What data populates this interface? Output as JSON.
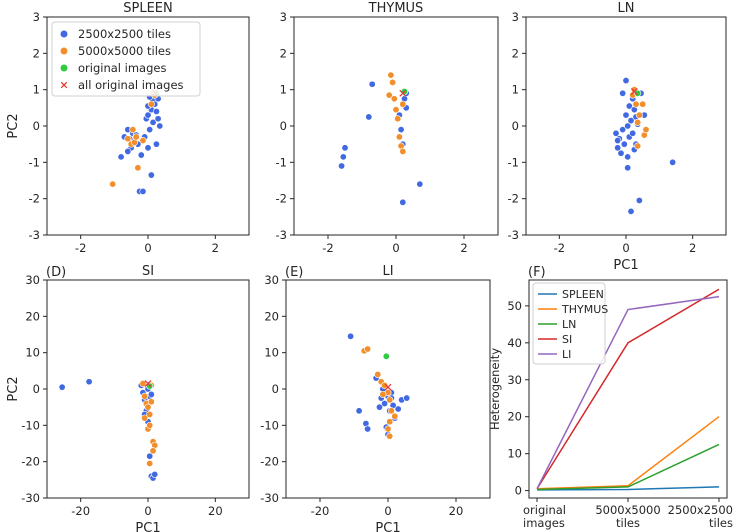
{
  "chart_data": [
    {
      "id": "spleen",
      "type": "scatter",
      "title": "SPLEEN",
      "panel_label": "",
      "xlabel": "",
      "ylabel": "PC2",
      "xlim": [
        -3,
        3
      ],
      "ylim": [
        -3,
        3
      ],
      "xticks": [
        -2,
        0,
        2
      ],
      "yticks": [
        -3,
        -2,
        -1,
        0,
        1,
        2,
        3
      ],
      "legend": {
        "placement": "top-left",
        "entries": [
          {
            "label": "2500x2500 tiles",
            "marker": "circle",
            "color": "#4169e1"
          },
          {
            "label": "5000x5000 tiles",
            "marker": "circle",
            "color": "#f28e2b"
          },
          {
            "label": "original images",
            "marker": "circle",
            "color": "#2ecc40"
          },
          {
            "label": "all original images",
            "marker": "x",
            "color": "#e53935"
          }
        ]
      },
      "series": [
        {
          "name": "2500x2500 tiles",
          "color": "#4169e1",
          "points": [
            [
              -0.7,
              -0.3
            ],
            [
              -0.6,
              -0.1
            ],
            [
              -0.55,
              -0.35
            ],
            [
              -0.5,
              -0.6
            ],
            [
              -0.45,
              -0.2
            ],
            [
              -0.4,
              -0.4
            ],
            [
              -0.35,
              -0.25
            ],
            [
              -0.3,
              -0.5
            ],
            [
              -0.25,
              -1.8
            ],
            [
              -0.15,
              -1.8
            ],
            [
              -0.1,
              -0.3
            ],
            [
              -0.05,
              0.2
            ],
            [
              0.0,
              -0.6
            ],
            [
              0.05,
              -0.1
            ],
            [
              0.0,
              0.3
            ],
            [
              0.1,
              0.45
            ],
            [
              0.15,
              0.7
            ],
            [
              0.05,
              0.8
            ],
            [
              0.2,
              0.6
            ],
            [
              0.25,
              0.4
            ],
            [
              0.3,
              0.2
            ],
            [
              0.35,
              0.0
            ],
            [
              0.15,
              0.1
            ],
            [
              0.1,
              -1.35
            ],
            [
              0.25,
              -0.5
            ],
            [
              -0.2,
              -0.8
            ],
            [
              -0.6,
              -0.7
            ],
            [
              -0.8,
              -0.85
            ],
            [
              0.3,
              0.75
            ],
            [
              0.0,
              0.55
            ]
          ]
        },
        {
          "name": "5000x5000 tiles",
          "color": "#f28e2b",
          "points": [
            [
              -1.05,
              -1.6
            ],
            [
              -0.6,
              -0.35
            ],
            [
              -0.5,
              -0.5
            ],
            [
              -0.45,
              -0.1
            ],
            [
              -0.4,
              -0.45
            ],
            [
              -0.35,
              -0.3
            ],
            [
              -0.3,
              -1.15
            ],
            [
              0.15,
              0.9
            ],
            [
              0.2,
              0.85
            ],
            [
              0.1,
              0.6
            ],
            [
              -0.15,
              -0.4
            ]
          ]
        },
        {
          "name": "original images",
          "color": "#2ecc40",
          "points": [
            [
              0.25,
              0.9
            ]
          ]
        },
        {
          "name": "all original images",
          "color": "#e53935",
          "points": [
            [
              0.2,
              0.92
            ]
          ]
        }
      ]
    },
    {
      "id": "thymus",
      "type": "scatter",
      "title": "THYMUS",
      "panel_label": "",
      "xlabel": "",
      "ylabel": "",
      "xlim": [
        -3,
        3
      ],
      "ylim": [
        -3,
        3
      ],
      "xticks": [
        -2,
        0,
        2
      ],
      "yticks": [
        -3,
        -2,
        -1,
        0,
        1,
        2,
        3
      ],
      "series": [
        {
          "name": "2500x2500 tiles",
          "color": "#4169e1",
          "points": [
            [
              -1.5,
              -0.6
            ],
            [
              -1.55,
              -0.85
            ],
            [
              -1.6,
              -1.1
            ],
            [
              -0.7,
              1.15
            ],
            [
              -0.8,
              0.25
            ],
            [
              0.1,
              0.3
            ],
            [
              0.15,
              -0.1
            ],
            [
              0.2,
              -0.5
            ],
            [
              0.25,
              0.75
            ],
            [
              0.3,
              0.5
            ],
            [
              0.7,
              -1.6
            ],
            [
              0.2,
              -2.1
            ],
            [
              0.3,
              0.9
            ]
          ]
        },
        {
          "name": "5000x5000 tiles",
          "color": "#f28e2b",
          "points": [
            [
              -0.15,
              1.4
            ],
            [
              -0.1,
              1.2
            ],
            [
              -0.2,
              0.85
            ],
            [
              0.0,
              0.45
            ],
            [
              0.05,
              0.2
            ],
            [
              0.1,
              -0.3
            ],
            [
              0.15,
              -0.55
            ],
            [
              0.2,
              -0.7
            ],
            [
              0.25,
              0.95
            ],
            [
              -0.05,
              0.75
            ],
            [
              0.2,
              0.6
            ]
          ]
        },
        {
          "name": "original images",
          "color": "#2ecc40",
          "points": [
            [
              0.25,
              0.95
            ]
          ]
        },
        {
          "name": "all original images",
          "color": "#e53935",
          "points": [
            [
              0.2,
              0.9
            ]
          ]
        }
      ]
    },
    {
      "id": "ln",
      "type": "scatter",
      "title": "LN",
      "panel_label": "",
      "xlabel": "PC1",
      "ylabel": "",
      "xlim": [
        -3,
        3
      ],
      "ylim": [
        -3,
        3
      ],
      "xticks": [
        -2,
        0,
        2
      ],
      "yticks": [
        -3,
        -2,
        -1,
        0,
        1,
        2,
        3
      ],
      "series": [
        {
          "name": "2500x2500 tiles",
          "color": "#4169e1",
          "points": [
            [
              -0.3,
              -0.2
            ],
            [
              -0.25,
              -0.6
            ],
            [
              -0.2,
              -0.35
            ],
            [
              -0.15,
              -0.75
            ],
            [
              -0.1,
              -0.1
            ],
            [
              -0.05,
              -0.5
            ],
            [
              0.0,
              1.25
            ],
            [
              0.0,
              0.3
            ],
            [
              0.05,
              -0.85
            ],
            [
              0.05,
              -1.15
            ],
            [
              0.1,
              0.55
            ],
            [
              0.1,
              -0.3
            ],
            [
              0.15,
              0.15
            ],
            [
              0.15,
              -2.35
            ],
            [
              0.2,
              0.75
            ],
            [
              0.2,
              -0.2
            ],
            [
              0.25,
              0.45
            ],
            [
              0.3,
              -0.5
            ],
            [
              0.35,
              0.05
            ],
            [
              0.4,
              -2.05
            ],
            [
              0.45,
              0.9
            ],
            [
              0.55,
              0.3
            ],
            [
              1.4,
              -1.0
            ],
            [
              -0.1,
              0.9
            ],
            [
              0.05,
              0.0
            ],
            [
              0.25,
              -0.65
            ],
            [
              -0.25,
              -0.4
            ],
            [
              0.3,
              0.25
            ]
          ]
        },
        {
          "name": "5000x5000 tiles",
          "color": "#f28e2b",
          "points": [
            [
              0.2,
              0.85
            ],
            [
              0.3,
              0.6
            ],
            [
              0.35,
              0.1
            ],
            [
              0.4,
              0.3
            ],
            [
              0.5,
              0.6
            ],
            [
              0.55,
              -0.25
            ],
            [
              0.6,
              -0.1
            ],
            [
              0.35,
              -0.55
            ],
            [
              0.25,
              1.0
            ]
          ]
        },
        {
          "name": "original images",
          "color": "#2ecc40",
          "points": [
            [
              0.35,
              0.9
            ]
          ]
        },
        {
          "name": "all original images",
          "color": "#e53935",
          "points": [
            [
              0.25,
              0.95
            ]
          ]
        }
      ]
    },
    {
      "id": "si",
      "type": "scatter",
      "title": "SI",
      "panel_label": "(D)",
      "xlabel": "PC1",
      "ylabel": "PC2",
      "xlim": [
        -30,
        30
      ],
      "ylim": [
        -30,
        30
      ],
      "xticks": [
        -20,
        0,
        20
      ],
      "yticks": [
        -30,
        -20,
        -10,
        0,
        10,
        20,
        30
      ],
      "series": [
        {
          "name": "2500x2500 tiles",
          "color": "#4169e1",
          "points": [
            [
              -25.5,
              0.5
            ],
            [
              -17.5,
              2.0
            ],
            [
              -2.0,
              1.0
            ],
            [
              -1.5,
              -1.0
            ],
            [
              -1.0,
              -3.0
            ],
            [
              -0.5,
              -6.0
            ],
            [
              0.0,
              -9.0
            ],
            [
              0.5,
              -2.0
            ],
            [
              1.0,
              -24.0
            ],
            [
              1.5,
              -24.5
            ],
            [
              2.0,
              -23.5
            ],
            [
              0.5,
              -18.5
            ],
            [
              -1.0,
              -7.0
            ],
            [
              1.0,
              -1.5
            ],
            [
              0.0,
              0.0
            ]
          ]
        },
        {
          "name": "5000x5000 tiles",
          "color": "#f28e2b",
          "points": [
            [
              -1.5,
              1.5
            ],
            [
              -1.0,
              -2.0
            ],
            [
              -0.5,
              -4.0
            ],
            [
              0.0,
              -5.0
            ],
            [
              0.5,
              -7.0
            ],
            [
              1.0,
              -3.5
            ],
            [
              -1.0,
              -8.0
            ],
            [
              0.0,
              -11.0
            ],
            [
              0.5,
              -10.0
            ],
            [
              1.5,
              -14.5
            ],
            [
              2.0,
              -15.5
            ],
            [
              1.5,
              -17.0
            ],
            [
              0.5,
              -20.5
            ],
            [
              1.0,
              1.0
            ]
          ]
        },
        {
          "name": "original images",
          "color": "#2ecc40",
          "points": [
            [
              0.5,
              0.8
            ]
          ]
        },
        {
          "name": "all original images",
          "color": "#e53935",
          "points": [
            [
              0.0,
              1.5
            ]
          ]
        }
      ]
    },
    {
      "id": "li",
      "type": "scatter",
      "title": "LI",
      "panel_label": "(E)",
      "xlabel": "PC1",
      "ylabel": "",
      "xlim": [
        -30,
        30
      ],
      "ylim": [
        -30,
        30
      ],
      "xticks": [
        -20,
        0,
        20
      ],
      "yticks": [
        -30,
        -20,
        -10,
        0,
        10,
        20,
        30
      ],
      "series": [
        {
          "name": "2500x2500 tiles",
          "color": "#4169e1",
          "points": [
            [
              -11.0,
              14.5
            ],
            [
              -8.5,
              -6.0
            ],
            [
              -6.5,
              -9.5
            ],
            [
              -6.0,
              -11.0
            ],
            [
              -3.5,
              3.0
            ],
            [
              -2.0,
              -2.5
            ],
            [
              -1.5,
              0.0
            ],
            [
              -1.0,
              -4.0
            ],
            [
              0.0,
              -2.0
            ],
            [
              0.5,
              -6.0
            ],
            [
              1.0,
              -1.0
            ],
            [
              1.5,
              -4.5
            ],
            [
              2.0,
              -8.0
            ],
            [
              3.0,
              -5.5
            ],
            [
              4.0,
              -3.0
            ],
            [
              5.5,
              -2.5
            ],
            [
              0.0,
              -12.5
            ],
            [
              -0.5,
              -10.5
            ],
            [
              1.0,
              -2.5
            ],
            [
              -2.5,
              -5.0
            ]
          ]
        },
        {
          "name": "5000x5000 tiles",
          "color": "#f28e2b",
          "points": [
            [
              -7.0,
              10.5
            ],
            [
              -6.0,
              11.0
            ],
            [
              -3.0,
              4.0
            ],
            [
              -2.0,
              2.0
            ],
            [
              -1.0,
              1.0
            ],
            [
              0.0,
              -1.0
            ],
            [
              0.5,
              -3.0
            ],
            [
              1.0,
              -6.0
            ],
            [
              0.5,
              -9.0
            ],
            [
              0.0,
              -11.0
            ],
            [
              0.5,
              -13.0
            ],
            [
              -1.5,
              -1.5
            ],
            [
              2.0,
              -7.5
            ]
          ]
        },
        {
          "name": "original images",
          "color": "#2ecc40",
          "points": [
            [
              -0.5,
              9.0
            ]
          ]
        },
        {
          "name": "all original images",
          "color": "#e53935",
          "points": [
            [
              0.0,
              0.5
            ]
          ]
        }
      ]
    },
    {
      "id": "heterogeneity",
      "type": "line",
      "title": "",
      "panel_label": "(F)",
      "xlabel": "",
      "ylabel": "Heterogeneity",
      "categories": [
        "original images",
        "5000x5000 tiles",
        "2500x2500 tiles"
      ],
      "category_lines": [
        [
          "original",
          "images"
        ],
        [
          "5000x5000",
          "tiles"
        ],
        [
          "2500x2500",
          "tiles"
        ]
      ],
      "ylim": [
        -2,
        57
      ],
      "yticks": [
        0,
        10,
        20,
        30,
        40,
        50
      ],
      "legend": {
        "placement": "top-left",
        "entries": [
          {
            "label": "SPLEEN",
            "color": "#1f77b4"
          },
          {
            "label": "THYMUS",
            "color": "#ff7f0e"
          },
          {
            "label": "LN",
            "color": "#2ca02c"
          },
          {
            "label": "SI",
            "color": "#d62728"
          },
          {
            "label": "LI",
            "color": "#9467bd"
          }
        ]
      },
      "series": [
        {
          "name": "SPLEEN",
          "color": "#1f77b4",
          "values": [
            0.2,
            0.3,
            1.0
          ]
        },
        {
          "name": "THYMUS",
          "color": "#ff7f0e",
          "values": [
            0.5,
            1.3,
            20.0
          ]
        },
        {
          "name": "LN",
          "color": "#2ca02c",
          "values": [
            0.3,
            1.0,
            12.5
          ]
        },
        {
          "name": "SI",
          "color": "#d62728",
          "values": [
            0.5,
            40.0,
            54.5
          ]
        },
        {
          "name": "LI",
          "color": "#9467bd",
          "values": [
            0.5,
            49.0,
            52.5
          ]
        }
      ]
    }
  ]
}
